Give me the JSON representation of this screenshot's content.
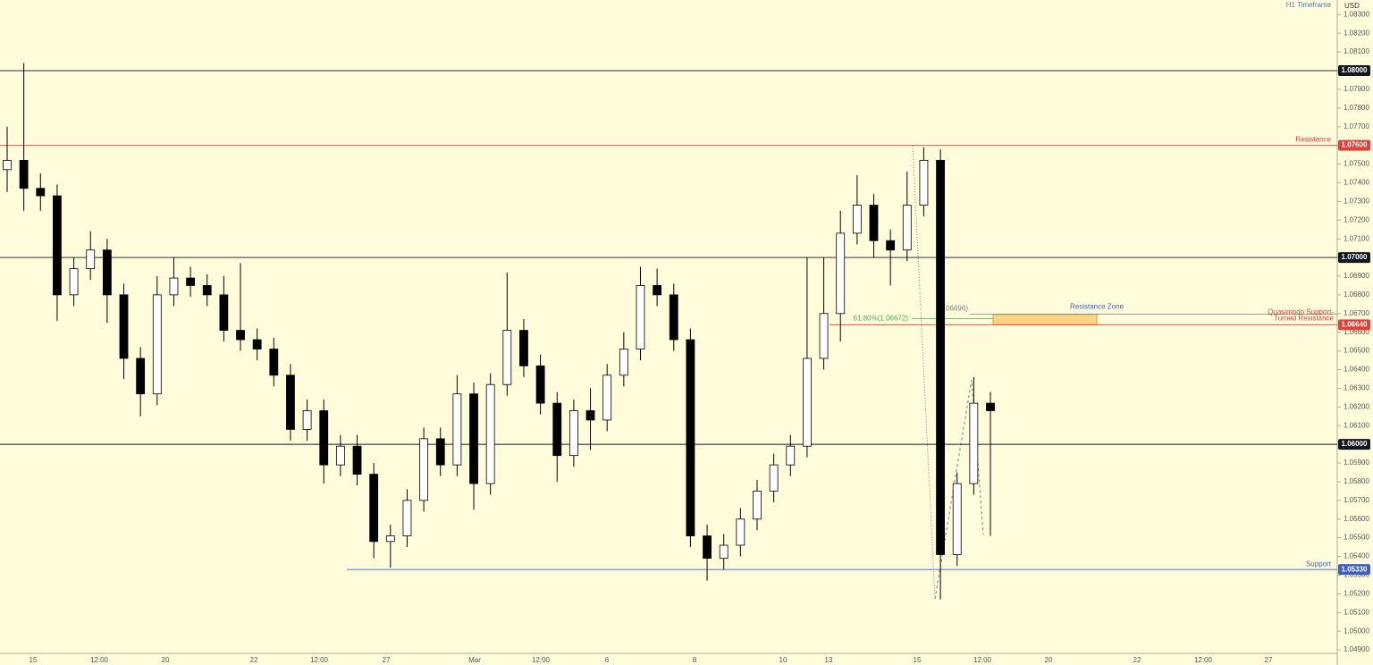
{
  "chart_data": {
    "type": "candlestick",
    "title": "H1 Timeframe",
    "currency": "USD",
    "background": "#fffcdc",
    "up_color": "#ffffff",
    "down_color": "#000000",
    "wick_color": "#000000",
    "ylim": [
      1.04819,
      1.08378
    ],
    "yticks": [
      {
        "value": 1.049,
        "label": "1.04900"
      },
      {
        "value": 1.05,
        "label": "1.05000"
      },
      {
        "value": 1.051,
        "label": "1.05100"
      },
      {
        "value": 1.052,
        "label": "1.05200"
      },
      {
        "value": 1.053,
        "label": "1.05300"
      },
      {
        "value": 1.054,
        "label": "1.05400"
      },
      {
        "value": 1.055,
        "label": "1.05500"
      },
      {
        "value": 1.056,
        "label": "1.05600"
      },
      {
        "value": 1.057,
        "label": "1.05700"
      },
      {
        "value": 1.058,
        "label": "1.05800"
      },
      {
        "value": 1.059,
        "label": "1.05900"
      },
      {
        "value": 1.06,
        "label": "1.06000"
      },
      {
        "value": 1.061,
        "label": "1.06100"
      },
      {
        "value": 1.062,
        "label": "1.06200"
      },
      {
        "value": 1.063,
        "label": "1.06300"
      },
      {
        "value": 1.064,
        "label": "1.06400"
      },
      {
        "value": 1.065,
        "label": "1.06500"
      },
      {
        "value": 1.066,
        "label": "1.06600"
      },
      {
        "value": 1.067,
        "label": "1.06700"
      },
      {
        "value": 1.068,
        "label": "1.06800"
      },
      {
        "value": 1.069,
        "label": "1.06900"
      },
      {
        "value": 1.07,
        "label": "1.07000"
      },
      {
        "value": 1.071,
        "label": "1.07100"
      },
      {
        "value": 1.072,
        "label": "1.07200"
      },
      {
        "value": 1.073,
        "label": "1.07300"
      },
      {
        "value": 1.074,
        "label": "1.07400"
      },
      {
        "value": 1.075,
        "label": "1.07500"
      },
      {
        "value": 1.076,
        "label": "1.07600"
      },
      {
        "value": 1.077,
        "label": "1.07700"
      },
      {
        "value": 1.078,
        "label": "1.07800"
      },
      {
        "value": 1.079,
        "label": "1.07900"
      },
      {
        "value": 1.08,
        "label": "1.08000"
      },
      {
        "value": 1.081,
        "label": "1.08100"
      },
      {
        "value": 1.082,
        "label": "1.08200"
      },
      {
        "value": 1.083,
        "label": "1.08300"
      }
    ],
    "xtick_labels": [
      "15",
      "12:00",
      "20",
      "22",
      "12:00",
      "27",
      "Mar",
      "12:00",
      "6",
      "8",
      "10",
      "13",
      "15",
      "12:00",
      "20",
      "22",
      "12:00",
      "27"
    ],
    "candles": {
      "open": [
        1.0747,
        1.0752,
        1.0737,
        1.0733,
        1.068,
        1.0694,
        1.0704,
        1.068,
        1.0646,
        1.0627,
        1.068,
        1.0689,
        1.0685,
        1.068,
        1.0661,
        1.0656,
        1.0651,
        1.0637,
        1.0608,
        1.0618,
        1.0589,
        1.0599,
        1.0584,
        1.0548,
        1.0551,
        1.057,
        1.0603,
        1.0589,
        1.0627,
        1.0579,
        1.0632,
        1.0661,
        1.0642,
        1.0622,
        1.0594,
        1.0618,
        1.0613,
        1.0637,
        1.0651,
        1.0685,
        1.068,
        1.0656,
        1.0551,
        1.0539,
        1.0546,
        1.056,
        1.0575,
        1.0589,
        1.0599,
        1.0646,
        1.067,
        1.0713,
        1.0728,
        1.0709,
        1.0704,
        1.0728,
        1.0752,
        1.0541,
        1.0579,
        1.0622
      ],
      "high": [
        1.077,
        1.0804,
        1.0745,
        1.0739,
        1.07,
        1.0714,
        1.071,
        1.0686,
        1.0652,
        1.069,
        1.07,
        1.0695,
        1.0691,
        1.069,
        1.0697,
        1.0662,
        1.0657,
        1.0643,
        1.0624,
        1.0624,
        1.0605,
        1.0605,
        1.059,
        1.0557,
        1.0576,
        1.0609,
        1.0609,
        1.0637,
        1.0633,
        1.0638,
        1.0692,
        1.0667,
        1.0648,
        1.0628,
        1.0624,
        1.063,
        1.0643,
        1.066,
        1.0695,
        1.0694,
        1.0686,
        1.0662,
        1.0557,
        1.0552,
        1.0566,
        1.0581,
        1.0595,
        1.0605,
        1.07,
        1.07,
        1.0725,
        1.0744,
        1.0734,
        1.0715,
        1.0746,
        1.0759,
        1.0758,
        1.0585,
        1.0636,
        1.0628
      ],
      "low": [
        1.0735,
        1.0725,
        1.0725,
        1.0666,
        1.0674,
        1.0688,
        1.0665,
        1.0635,
        1.0615,
        1.0621,
        1.0674,
        1.0679,
        1.0674,
        1.0655,
        1.065,
        1.0645,
        1.0631,
        1.0602,
        1.0602,
        1.0579,
        1.0583,
        1.0578,
        1.0539,
        1.0534,
        1.0545,
        1.0564,
        1.0583,
        1.0583,
        1.0565,
        1.0573,
        1.0626,
        1.0636,
        1.0616,
        1.058,
        1.0588,
        1.0597,
        1.0607,
        1.0631,
        1.0645,
        1.0674,
        1.065,
        1.0545,
        1.0527,
        1.0533,
        1.054,
        1.0554,
        1.0569,
        1.0583,
        1.0593,
        1.064,
        1.0655,
        1.0707,
        1.07,
        1.0685,
        1.0698,
        1.0722,
        1.0517,
        1.0535,
        1.0573,
        1.0551
      ],
      "close": [
        1.0752,
        1.0737,
        1.0733,
        1.068,
        1.0694,
        1.0704,
        1.068,
        1.0646,
        1.0627,
        1.068,
        1.0689,
        1.0685,
        1.068,
        1.0661,
        1.0656,
        1.0651,
        1.0637,
        1.0608,
        1.0618,
        1.0589,
        1.0599,
        1.0584,
        1.0548,
        1.0551,
        1.057,
        1.0603,
        1.0589,
        1.0627,
        1.0579,
        1.0632,
        1.0661,
        1.0642,
        1.0622,
        1.0594,
        1.0618,
        1.0613,
        1.0637,
        1.0651,
        1.0685,
        1.068,
        1.0656,
        1.0551,
        1.0539,
        1.0546,
        1.056,
        1.0575,
        1.0589,
        1.0599,
        1.0646,
        1.067,
        1.0713,
        1.0728,
        1.0709,
        1.0704,
        1.0728,
        1.0752,
        1.0541,
        1.0579,
        1.0622,
        1.0618
      ]
    },
    "levels": [
      {
        "value": 1.08,
        "label": "1.08000",
        "color": "#131722"
      },
      {
        "value": 1.076,
        "label": "1.07600",
        "color": "#e0403a",
        "name": "Resistance"
      },
      {
        "value": 1.07,
        "label": "1.07000",
        "color": "#131722"
      },
      {
        "value": 1.0664,
        "label": "1.06640",
        "color": "#e0403a",
        "name_lines": [
          "Quasimodo Support-",
          "Turned Resistance"
        ]
      },
      {
        "value": 1.06,
        "label": "1.06000",
        "color": "#131722"
      },
      {
        "value": 1.0533,
        "label": "1.05330",
        "color": "#3d5fc4",
        "name": "Support"
      }
    ],
    "zone": {
      "name": "Resistance Zone",
      "low": 1.0664,
      "high": 1.06696,
      "color": "#f7c35c"
    },
    "fib": [
      {
        "value": 1.06672,
        "label": "61.80%(1.06672)",
        "color": "#4caf50"
      },
      {
        "value": 1.06696,
        "label": "(1.06696)",
        "color": "#787b86"
      }
    ]
  }
}
